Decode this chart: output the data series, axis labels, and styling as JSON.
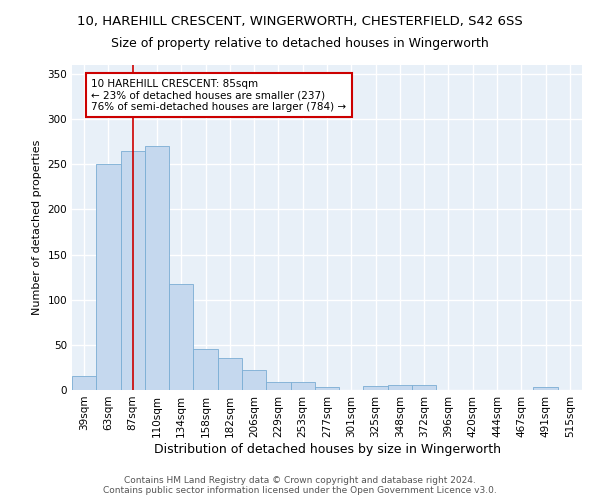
{
  "title": "10, HAREHILL CRESCENT, WINGERWORTH, CHESTERFIELD, S42 6SS",
  "subtitle": "Size of property relative to detached houses in Wingerworth",
  "xlabel": "Distribution of detached houses by size in Wingerworth",
  "ylabel": "Number of detached properties",
  "categories": [
    "39sqm",
    "63sqm",
    "87sqm",
    "110sqm",
    "134sqm",
    "158sqm",
    "182sqm",
    "206sqm",
    "229sqm",
    "253sqm",
    "277sqm",
    "301sqm",
    "325sqm",
    "348sqm",
    "372sqm",
    "396sqm",
    "420sqm",
    "444sqm",
    "467sqm",
    "491sqm",
    "515sqm"
  ],
  "values": [
    16,
    250,
    265,
    270,
    117,
    45,
    35,
    22,
    9,
    9,
    3,
    0,
    4,
    5,
    5,
    0,
    0,
    0,
    0,
    3,
    0
  ],
  "bar_color": "#c5d8ee",
  "bar_edge_color": "#7aadd4",
  "redline_x": 2.0,
  "annotation_line1": "10 HAREHILL CRESCENT: 85sqm",
  "annotation_line2": "← 23% of detached houses are smaller (237)",
  "annotation_line3": "76% of semi-detached houses are larger (784) →",
  "annotation_box_color": "#ffffff",
  "annotation_box_edge_color": "#cc0000",
  "redline_color": "#cc0000",
  "footer1": "Contains HM Land Registry data © Crown copyright and database right 2024.",
  "footer2": "Contains public sector information licensed under the Open Government Licence v3.0.",
  "ylim": [
    0,
    360
  ],
  "yticks": [
    0,
    50,
    100,
    150,
    200,
    250,
    300,
    350
  ],
  "plot_bg_color": "#e8f0f8",
  "fig_bg_color": "#ffffff",
  "grid_color": "#ffffff",
  "title_fontsize": 9.5,
  "subtitle_fontsize": 9,
  "ylabel_fontsize": 8,
  "xlabel_fontsize": 9,
  "tick_fontsize": 7.5,
  "footer_fontsize": 6.5
}
